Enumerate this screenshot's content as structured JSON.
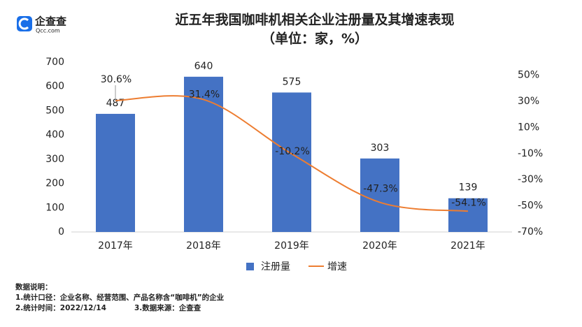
{
  "logo": {
    "name": "企查查",
    "domain": "Qcc.com"
  },
  "chart_data": {
    "type": "bar-line",
    "title": "近五年我国咖啡机相关企业注册量及其增速表现",
    "subtitle": "（单位：家，%）",
    "categories": [
      "2017年",
      "2018年",
      "2019年",
      "2020年",
      "2021年"
    ],
    "series": [
      {
        "name": "注册量",
        "type": "bar",
        "color": "#4472c4",
        "values": [
          487,
          640,
          575,
          303,
          139
        ]
      },
      {
        "name": "增速",
        "type": "line",
        "axis": "y2",
        "color": "#ed7d31",
        "values": [
          30.6,
          31.4,
          -10.2,
          -47.3,
          -54.1
        ],
        "value_labels": [
          "30.6%",
          "31.4%",
          "-10.2%",
          "-47.3%",
          "-54.1%"
        ]
      }
    ],
    "ylim": [
      0,
      700
    ],
    "yticks": [
      0,
      100,
      200,
      300,
      400,
      500,
      600,
      700
    ],
    "y2lim": [
      -70,
      60
    ],
    "y2ticks": [
      {
        "value": 50,
        "label": "50%"
      },
      {
        "value": 30,
        "label": "30%"
      },
      {
        "value": 10,
        "label": "10%"
      },
      {
        "value": -10,
        "label": "-10%"
      },
      {
        "value": -30,
        "label": "-30%"
      },
      {
        "value": -50,
        "label": "-50%"
      },
      {
        "value": -70,
        "label": "-70%"
      }
    ],
    "legend": "bottom",
    "notes": [
      "数据说明：",
      "1.统计口径：企业名称、经营范围、产品名称含“咖啡机”的企业",
      "2.统计时间：2022/12/14",
      "3.数据来源：企查查"
    ]
  }
}
